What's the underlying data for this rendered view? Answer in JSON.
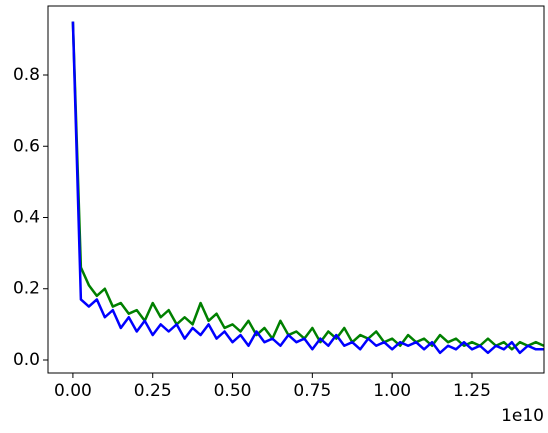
{
  "chart_data": {
    "type": "line",
    "x_offset_label": "1e10",
    "x": [
      0,
      250000000,
      500000000,
      750000000,
      1000000000,
      1250000000,
      1500000000,
      1750000000,
      2000000000,
      2250000000,
      2500000000,
      2750000000,
      3000000000,
      3250000000,
      3500000000,
      3750000000,
      4000000000,
      4250000000,
      4500000000,
      4750000000,
      5000000000,
      5250000000,
      5500000000,
      5750000000,
      6000000000,
      6250000000,
      6500000000,
      6750000000,
      7000000000,
      7250000000,
      7500000000,
      7750000000,
      8000000000,
      8250000000,
      8500000000,
      8750000000,
      9000000000,
      9250000000,
      9500000000,
      9750000000,
      10000000000,
      10250000000,
      10500000000,
      10750000000,
      11000000000,
      11250000000,
      11500000000,
      11750000000,
      12000000000,
      12250000000,
      12500000000,
      12750000000,
      13000000000,
      13250000000,
      13500000000,
      13750000000,
      14000000000,
      14250000000,
      14500000000,
      14750000000
    ],
    "series": [
      {
        "color": "#008000",
        "values": [
          0.95,
          0.26,
          0.21,
          0.18,
          0.2,
          0.15,
          0.16,
          0.13,
          0.14,
          0.11,
          0.16,
          0.12,
          0.14,
          0.1,
          0.12,
          0.1,
          0.16,
          0.11,
          0.13,
          0.09,
          0.1,
          0.08,
          0.11,
          0.07,
          0.09,
          0.06,
          0.11,
          0.07,
          0.08,
          0.06,
          0.09,
          0.05,
          0.08,
          0.06,
          0.09,
          0.05,
          0.07,
          0.06,
          0.08,
          0.05,
          0.06,
          0.04,
          0.07,
          0.05,
          0.06,
          0.04,
          0.07,
          0.05,
          0.06,
          0.04,
          0.05,
          0.04,
          0.06,
          0.04,
          0.05,
          0.03,
          0.05,
          0.04,
          0.05,
          0.04
        ]
      },
      {
        "color": "#0000ff",
        "values": [
          0.95,
          0.17,
          0.15,
          0.17,
          0.12,
          0.14,
          0.09,
          0.12,
          0.08,
          0.11,
          0.07,
          0.1,
          0.08,
          0.1,
          0.06,
          0.09,
          0.07,
          0.1,
          0.06,
          0.08,
          0.05,
          0.07,
          0.04,
          0.08,
          0.05,
          0.06,
          0.04,
          0.07,
          0.05,
          0.06,
          0.03,
          0.06,
          0.04,
          0.07,
          0.04,
          0.05,
          0.03,
          0.06,
          0.04,
          0.05,
          0.03,
          0.05,
          0.04,
          0.05,
          0.03,
          0.05,
          0.02,
          0.04,
          0.03,
          0.05,
          0.03,
          0.04,
          0.02,
          0.04,
          0.03,
          0.05,
          0.02,
          0.04,
          0.03,
          0.03
        ]
      }
    ],
    "xlim": [
      -780000000,
      14756000000
    ],
    "xticks": [
      {
        "value": 0,
        "label": "0.00"
      },
      {
        "value": 2500000000,
        "label": "0.25"
      },
      {
        "value": 5000000000,
        "label": "0.50"
      },
      {
        "value": 7500000000,
        "label": "0.75"
      },
      {
        "value": 10000000000,
        "label": "1.00"
      },
      {
        "value": 12500000000,
        "label": "1.25"
      }
    ],
    "ylim": [
      -0.0365,
      0.9937
    ],
    "yticks": [
      {
        "value": 0,
        "label": "0.0"
      },
      0.2,
      0.4,
      0.6,
      0.8
    ],
    "grid": false
  }
}
